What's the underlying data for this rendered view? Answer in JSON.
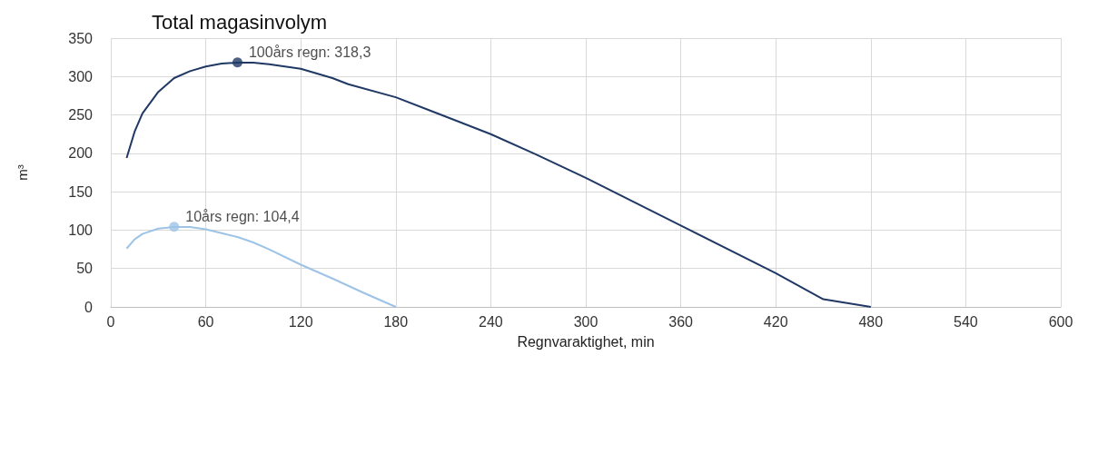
{
  "chart_data": {
    "type": "line",
    "title": "Total magasinvolym",
    "xlabel": "Regnvaraktighet, min",
    "ylabel": "m³",
    "xlim": [
      0,
      600
    ],
    "xticks": [
      0,
      60,
      120,
      180,
      240,
      300,
      360,
      420,
      480,
      540,
      600
    ],
    "ylim": [
      0,
      350
    ],
    "yticks": [
      0,
      50,
      100,
      150,
      200,
      250,
      300,
      350
    ],
    "grid": true,
    "marker": "none",
    "line_style": "solid",
    "series": [
      {
        "color": "#1f3864",
        "x": [
          10,
          15,
          20,
          30,
          40,
          50,
          60,
          70,
          80,
          90,
          100,
          120,
          140,
          150,
          180,
          205,
          240,
          268,
          300,
          360,
          420,
          450,
          480
        ],
        "values": [
          194,
          228,
          252,
          280,
          298,
          307,
          313,
          317,
          318,
          318,
          316,
          310,
          298,
          290,
          273,
          253,
          225,
          199,
          168,
          106,
          44,
          10,
          0
        ]
      },
      {
        "color": "#9dc3e6",
        "x": [
          10,
          15,
          20,
          30,
          40,
          50,
          60,
          70,
          80,
          90,
          100,
          120,
          140,
          160,
          180
        ],
        "values": [
          76,
          88,
          95,
          102,
          104,
          104,
          101,
          96,
          91,
          84,
          75,
          55,
          37,
          18,
          0
        ]
      }
    ],
    "annotations": [
      {
        "text": "100års regn: 318,3",
        "x": 80,
        "y": 318.3
      },
      {
        "text": "10års regn: 104,4",
        "x": 40,
        "y": 104.4
      }
    ]
  }
}
